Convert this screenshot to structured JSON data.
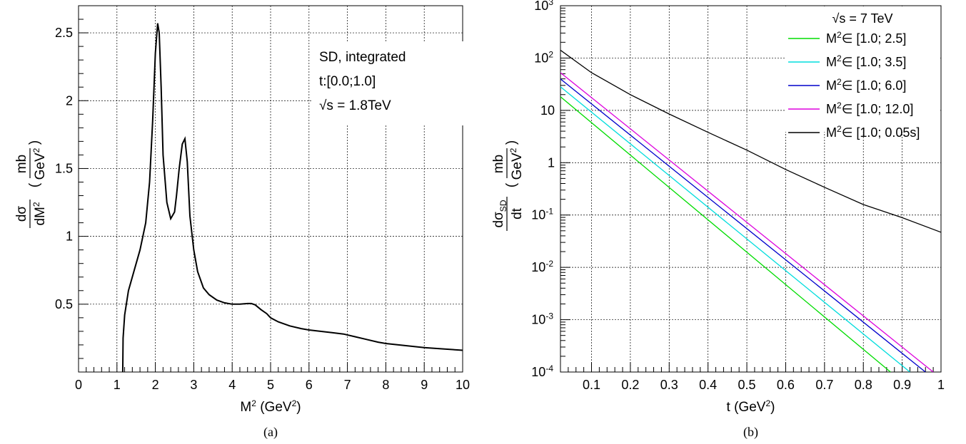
{
  "chart_data": [
    {
      "type": "line",
      "panel": "(a)",
      "xlabel": "M² (GeV²)",
      "ylabel_num": "dσ",
      "ylabel_den": "dM²",
      "ylabel_unit_num": "mb",
      "ylabel_unit_den": "GeV²",
      "xlim": [
        0,
        10
      ],
      "ylim": [
        0,
        2.7
      ],
      "x_ticks": [
        "0",
        "1",
        "2",
        "3",
        "4",
        "5",
        "6",
        "7",
        "8",
        "9",
        "10"
      ],
      "y_ticks": [
        {
          "v": 0.5,
          "label": "0.5"
        },
        {
          "v": 1,
          "label": "1"
        },
        {
          "v": 1.5,
          "label": "1.5"
        },
        {
          "v": 2,
          "label": "2"
        },
        {
          "v": 2.5,
          "label": "2.5"
        }
      ],
      "grid": true,
      "annotations": [
        "SD, integrated",
        "t:[0.0;1.0]",
        "√s = 1.8TeV"
      ],
      "series": [
        {
          "color": "#000000",
          "x": [
            1.15,
            1.16,
            1.2,
            1.3,
            1.45,
            1.6,
            1.75,
            1.85,
            1.93,
            2.0,
            2.06,
            2.1,
            2.15,
            2.2,
            2.3,
            2.4,
            2.5,
            2.55,
            2.62,
            2.7,
            2.77,
            2.83,
            2.9,
            3.0,
            3.1,
            3.25,
            3.4,
            3.6,
            3.8,
            4.0,
            4.2,
            4.4,
            4.5,
            4.6,
            4.75,
            4.9,
            5.0,
            5.2,
            5.5,
            5.8,
            6.0,
            6.3,
            6.6,
            6.9,
            7.2,
            7.5,
            7.8,
            8.0,
            8.5,
            9.0,
            9.5,
            10.0
          ],
          "y": [
            0,
            0.25,
            0.42,
            0.6,
            0.75,
            0.9,
            1.1,
            1.4,
            1.85,
            2.35,
            2.57,
            2.5,
            2.1,
            1.6,
            1.25,
            1.13,
            1.18,
            1.3,
            1.5,
            1.68,
            1.72,
            1.55,
            1.15,
            0.9,
            0.74,
            0.62,
            0.57,
            0.53,
            0.51,
            0.5,
            0.5,
            0.505,
            0.505,
            0.495,
            0.46,
            0.43,
            0.4,
            0.37,
            0.34,
            0.32,
            0.31,
            0.3,
            0.29,
            0.28,
            0.26,
            0.24,
            0.22,
            0.21,
            0.195,
            0.18,
            0.17,
            0.16
          ]
        }
      ]
    },
    {
      "type": "line",
      "panel": "(b)",
      "xlabel": "t (GeV²)",
      "ylabel_num": "dσ",
      "ylabel_num_sub": "SD",
      "ylabel_den": "dt",
      "ylabel_unit_num": "mb",
      "ylabel_unit_den": "GeV²",
      "xlim": [
        0.02,
        1.0
      ],
      "ylim_log10": [
        -4,
        3
      ],
      "yscale": "log",
      "x_ticks": [
        "0.1",
        "0.2",
        "0.3",
        "0.4",
        "0.5",
        "0.6",
        "0.7",
        "0.8",
        "0.9",
        "1"
      ],
      "y_ticks": [
        {
          "e": -4,
          "base": "10",
          "exp": "-4"
        },
        {
          "e": -3,
          "base": "10",
          "exp": "-3"
        },
        {
          "e": -2,
          "base": "10",
          "exp": "-2"
        },
        {
          "e": -1,
          "base": "10",
          "exp": "-1"
        },
        {
          "e": 0,
          "base": "1",
          "exp": ""
        },
        {
          "e": 1,
          "base": "10",
          "exp": ""
        },
        {
          "e": 2,
          "base": "10",
          "exp": "2"
        },
        {
          "e": 3,
          "base": "10",
          "exp": "3"
        }
      ],
      "grid": true,
      "legend_title": "√s = 7 TeV",
      "legend_position": "top-right",
      "series": [
        {
          "name": "M²∈ [1.0; 2.5]",
          "color": "#00dd00",
          "x": [
            0.02,
            0.87
          ],
          "log10y": [
            1.26,
            -4.0
          ]
        },
        {
          "name": "M²∈ [1.0; 3.5]",
          "color": "#00dddd",
          "x": [
            0.02,
            0.92
          ],
          "log10y": [
            1.45,
            -4.0
          ]
        },
        {
          "name": "M²∈ [1.0; 6.0]",
          "color": "#0000cc",
          "x": [
            0.02,
            0.96
          ],
          "log10y": [
            1.6,
            -4.0
          ]
        },
        {
          "name": "M²∈ [1.0; 12.0]",
          "color": "#dd00dd",
          "x": [
            0.02,
            0.98
          ],
          "log10y": [
            1.72,
            -4.0
          ]
        },
        {
          "name": "M²∈ [1.0; 0.05s]",
          "color": "#000000",
          "x": [
            0.02,
            0.1,
            0.2,
            0.3,
            0.4,
            0.5,
            0.6,
            0.7,
            0.8,
            0.9,
            1.0
          ],
          "log10y": [
            2.15,
            1.72,
            1.3,
            0.93,
            0.58,
            0.24,
            -0.13,
            -0.47,
            -0.8,
            -1.05,
            -1.33
          ]
        }
      ]
    }
  ],
  "captions": [
    "(a)",
    "(b)"
  ]
}
